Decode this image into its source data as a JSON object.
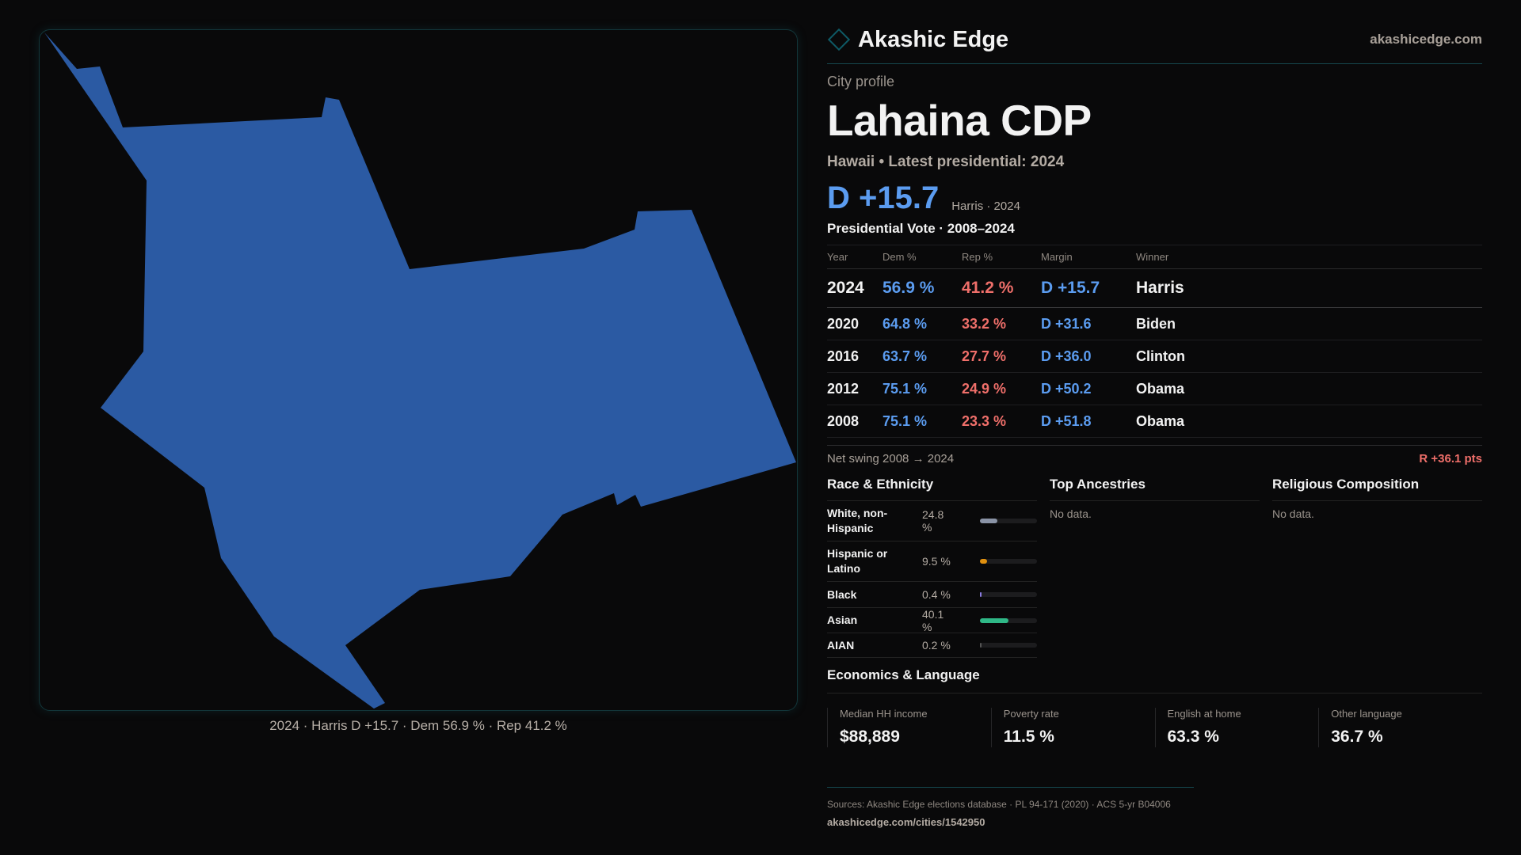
{
  "map": {
    "caption": "2024 · Harris D +15.7 · Dem 56.9 % · Rep 41.2 %",
    "fill_color": "#2b5aa3"
  },
  "header": {
    "brand": "Akashic Edge",
    "site": "akashicedge.com"
  },
  "profile": {
    "kicker": "City profile",
    "title": "Lahaina CDP",
    "subtitle": "Hawaii • Latest presidential: 2024",
    "margin": "D +15.7",
    "margin_note": "Harris · 2024"
  },
  "vote": {
    "heading": "Presidential Vote · 2008–2024",
    "columns": [
      "Year",
      "Dem %",
      "Rep %",
      "Margin",
      "Winner"
    ],
    "rows": [
      {
        "year": "2024",
        "dem": "56.9 %",
        "rep": "41.2 %",
        "margin": "D +15.7",
        "winner": "Harris"
      },
      {
        "year": "2020",
        "dem": "64.8 %",
        "rep": "33.2 %",
        "margin": "D +31.6",
        "winner": "Biden"
      },
      {
        "year": "2016",
        "dem": "63.7 %",
        "rep": "27.7 %",
        "margin": "D +36.0",
        "winner": "Clinton"
      },
      {
        "year": "2012",
        "dem": "75.1 %",
        "rep": "24.9 %",
        "margin": "D +50.2",
        "winner": "Obama"
      },
      {
        "year": "2008",
        "dem": "75.1 %",
        "rep": "23.3 %",
        "margin": "D +51.8",
        "winner": "Obama"
      }
    ],
    "swing_label": "Net swing 2008 → 2024",
    "swing_value": "R +36.1 pts"
  },
  "race": {
    "heading": "Race & Ethnicity",
    "items": [
      {
        "label": "White, non-Hispanic",
        "pct": "24.8 %",
        "value": 24.8,
        "color": "#8a93a6"
      },
      {
        "label": "Hispanic or Latino",
        "pct": "9.5 %",
        "value": 9.5,
        "color": "#e0900f"
      },
      {
        "label": "Black",
        "pct": "0.4 %",
        "value": 0.4,
        "color": "#8a7be0"
      },
      {
        "label": "Asian",
        "pct": "40.1 %",
        "value": 40.1,
        "color": "#2fb887"
      },
      {
        "label": "AIAN",
        "pct": "0.2 %",
        "value": 0.2,
        "color": "#555"
      }
    ]
  },
  "ancestries": {
    "heading": "Top Ancestries",
    "empty": "No data."
  },
  "religion": {
    "heading": "Religious Composition",
    "empty": "No data."
  },
  "economics": {
    "heading": "Economics & Language",
    "stats": [
      {
        "label": "Median HH income",
        "value": "$88,889"
      },
      {
        "label": "Poverty rate",
        "value": "11.5 %"
      },
      {
        "label": "English at home",
        "value": "63.3 %"
      },
      {
        "label": "Other language",
        "value": "36.7 %"
      }
    ]
  },
  "footer": {
    "sources": "Sources: Akashic Edge elections database · PL 94-171 (2020) · ACS 5-yr B04006",
    "url": "akashicedge.com/cities/1542950"
  }
}
